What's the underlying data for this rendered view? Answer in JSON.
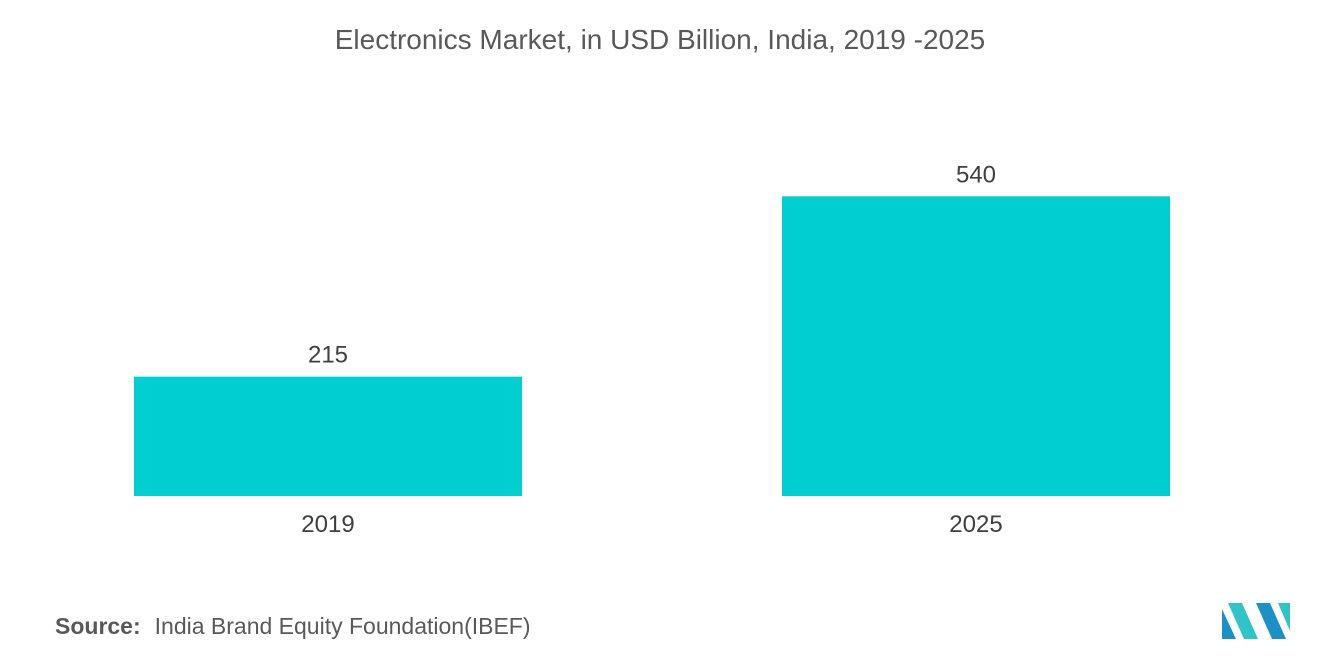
{
  "chart_data": {
    "type": "bar",
    "title": "Electronics Market, in USD Billion, India, 2019 -2025",
    "categories": [
      "2019",
      "2025"
    ],
    "values": [
      215,
      540
    ],
    "data_labels": [
      "215",
      "540"
    ],
    "xlabel": "",
    "ylabel": "",
    "ylim": [
      0,
      600
    ],
    "grid": false,
    "legend": "none",
    "bar_color": "#00CED1"
  },
  "source": {
    "label": "Source:",
    "text": "India Brand Equity Foundation(IBEF)"
  },
  "logo": {
    "icon": "mordor-intelligence-logo-icon",
    "colors": [
      "#1E90C8",
      "#2FC5C8"
    ]
  }
}
